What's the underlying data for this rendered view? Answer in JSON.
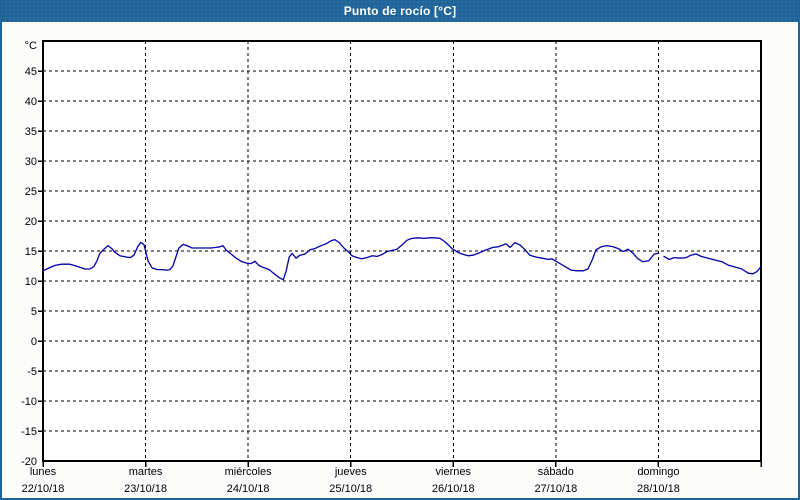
{
  "window": {
    "title": "Punto de rocío [°C]"
  },
  "colors": {
    "titlebar_bg": "#1f6599",
    "titlebar_text": "#ffffff",
    "page_border": "#1f6599",
    "page_bg": "#fcfdfb",
    "plot_bg": "#fefefe",
    "grid": "#000000",
    "axis": "#000000",
    "line": "#0000a8",
    "label_text": "#000000"
  },
  "chart_data": {
    "type": "line",
    "title": "Punto de rocío [°C]",
    "y_axis": {
      "unit_label": "°C",
      "min": -20,
      "max": 50,
      "tick_step": 5,
      "tick_labels": [
        "45",
        "40",
        "35",
        "30",
        "25",
        "20",
        "15",
        "10",
        "5",
        "0",
        "-5",
        "-10",
        "-15",
        "-20"
      ],
      "grid": true
    },
    "x_axis": {
      "total_hours": 168,
      "day_width_hours": 24,
      "grid": true,
      "days": [
        {
          "name": "lunes",
          "date": "22/10/18"
        },
        {
          "name": "martes",
          "date": "23/10/18"
        },
        {
          "name": "miércoles",
          "date": "24/10/18"
        },
        {
          "name": "jueves",
          "date": "25/10/18"
        },
        {
          "name": "viernes",
          "date": "26/10/18"
        },
        {
          "name": "sábado",
          "date": "27/10/18"
        },
        {
          "name": "domingo",
          "date": "28/10/18"
        }
      ]
    },
    "legend": "none",
    "series": [
      {
        "name": "Punto de rocío",
        "color": "#0000a8",
        "points": [
          [
            0,
            11.7
          ],
          [
            1.2,
            12.1
          ],
          [
            2.8,
            12.6
          ],
          [
            4.4,
            12.8
          ],
          [
            6.3,
            12.8
          ],
          [
            8.2,
            12.4
          ],
          [
            9.8,
            12.0
          ],
          [
            11.0,
            12.0
          ],
          [
            11.9,
            12.4
          ],
          [
            12.6,
            13.3
          ],
          [
            13.3,
            14.6
          ],
          [
            14.0,
            15.1
          ],
          [
            15.2,
            15.9
          ],
          [
            16.1,
            15.4
          ],
          [
            16.8,
            14.8
          ],
          [
            18.0,
            14.2
          ],
          [
            19.4,
            14.0
          ],
          [
            20.4,
            13.9
          ],
          [
            21.3,
            14.3
          ],
          [
            22.2,
            15.8
          ],
          [
            22.9,
            16.4
          ],
          [
            23.6,
            16.1
          ],
          [
            24.6,
            13.3
          ],
          [
            25.5,
            12.2
          ],
          [
            26.7,
            11.9
          ],
          [
            27.8,
            11.9
          ],
          [
            29.0,
            11.8
          ],
          [
            29.7,
            11.9
          ],
          [
            30.4,
            12.5
          ],
          [
            31.1,
            14.0
          ],
          [
            31.8,
            15.5
          ],
          [
            32.8,
            16.1
          ],
          [
            33.7,
            15.9
          ],
          [
            34.9,
            15.5
          ],
          [
            36.3,
            15.5
          ],
          [
            37.9,
            15.5
          ],
          [
            39.3,
            15.5
          ],
          [
            40.5,
            15.6
          ],
          [
            41.4,
            15.7
          ],
          [
            42.1,
            15.9
          ],
          [
            42.8,
            15.2
          ],
          [
            44.0,
            14.5
          ],
          [
            45.2,
            13.8
          ],
          [
            46.3,
            13.3
          ],
          [
            47.5,
            13.0
          ],
          [
            48.7,
            12.9
          ],
          [
            49.6,
            13.3
          ],
          [
            50.5,
            12.6
          ],
          [
            51.7,
            12.2
          ],
          [
            52.9,
            11.9
          ],
          [
            54.1,
            11.2
          ],
          [
            55.2,
            10.6
          ],
          [
            56.2,
            10.2
          ],
          [
            56.9,
            11.7
          ],
          [
            57.6,
            14.0
          ],
          [
            58.3,
            14.6
          ],
          [
            59.2,
            13.8
          ],
          [
            60.1,
            14.3
          ],
          [
            61.3,
            14.5
          ],
          [
            62.5,
            15.2
          ],
          [
            63.6,
            15.4
          ],
          [
            64.8,
            15.8
          ],
          [
            66.2,
            16.2
          ],
          [
            67.4,
            16.7
          ],
          [
            68.3,
            16.9
          ],
          [
            69.3,
            16.4
          ],
          [
            70.4,
            15.5
          ],
          [
            71.4,
            14.9
          ],
          [
            72.3,
            14.2
          ],
          [
            73.5,
            13.9
          ],
          [
            74.6,
            13.7
          ],
          [
            75.8,
            13.9
          ],
          [
            77.0,
            14.2
          ],
          [
            78.2,
            14.1
          ],
          [
            79.3,
            14.4
          ],
          [
            80.5,
            14.9
          ],
          [
            81.7,
            15.1
          ],
          [
            82.8,
            15.3
          ],
          [
            84.0,
            16.0
          ],
          [
            85.2,
            16.8
          ],
          [
            86.3,
            17.1
          ],
          [
            87.8,
            17.2
          ],
          [
            89.1,
            17.1
          ],
          [
            90.5,
            17.2
          ],
          [
            91.7,
            17.2
          ],
          [
            92.9,
            17.1
          ],
          [
            94.1,
            16.5
          ],
          [
            95.0,
            15.9
          ],
          [
            95.7,
            15.4
          ],
          [
            96.6,
            15.0
          ],
          [
            97.6,
            14.6
          ],
          [
            98.5,
            14.4
          ],
          [
            99.5,
            14.2
          ],
          [
            100.6,
            14.3
          ],
          [
            101.8,
            14.6
          ],
          [
            103.0,
            15.0
          ],
          [
            104.1,
            15.3
          ],
          [
            105.3,
            15.6
          ],
          [
            106.5,
            15.7
          ],
          [
            107.6,
            16.0
          ],
          [
            108.3,
            16.2
          ],
          [
            109.3,
            15.6
          ],
          [
            110.4,
            16.4
          ],
          [
            111.6,
            16.0
          ],
          [
            112.8,
            15.2
          ],
          [
            113.9,
            14.3
          ],
          [
            115.3,
            14.0
          ],
          [
            116.8,
            13.8
          ],
          [
            118.2,
            13.6
          ],
          [
            119.1,
            13.7
          ],
          [
            120.0,
            13.3
          ],
          [
            121.2,
            12.8
          ],
          [
            122.4,
            12.3
          ],
          [
            123.6,
            11.8
          ],
          [
            125.0,
            11.7
          ],
          [
            126.4,
            11.7
          ],
          [
            127.5,
            12.0
          ],
          [
            128.5,
            13.5
          ],
          [
            129.4,
            15.2
          ],
          [
            130.6,
            15.7
          ],
          [
            132.0,
            15.9
          ],
          [
            133.4,
            15.7
          ],
          [
            134.6,
            15.4
          ],
          [
            135.7,
            14.9
          ],
          [
            136.9,
            15.3
          ],
          [
            138.1,
            14.6
          ],
          [
            139.2,
            13.7
          ],
          [
            140.4,
            13.2
          ],
          [
            141.8,
            13.4
          ],
          [
            143.0,
            14.5
          ],
          [
            143.9,
            14.6
          ],
          [
            144.5,
            null
          ],
          [
            145.3,
            14.1
          ],
          [
            146.5,
            13.6
          ],
          [
            147.7,
            13.9
          ],
          [
            149.1,
            13.8
          ],
          [
            150.5,
            13.9
          ],
          [
            151.6,
            14.3
          ],
          [
            152.8,
            14.5
          ],
          [
            154.0,
            14.1
          ],
          [
            155.6,
            13.8
          ],
          [
            157.2,
            13.5
          ],
          [
            158.9,
            13.2
          ],
          [
            160.5,
            12.6
          ],
          [
            162.1,
            12.3
          ],
          [
            163.5,
            12.0
          ],
          [
            165.0,
            11.3
          ],
          [
            166.1,
            11.2
          ],
          [
            167.1,
            11.6
          ],
          [
            168,
            12.4
          ]
        ]
      }
    ]
  }
}
